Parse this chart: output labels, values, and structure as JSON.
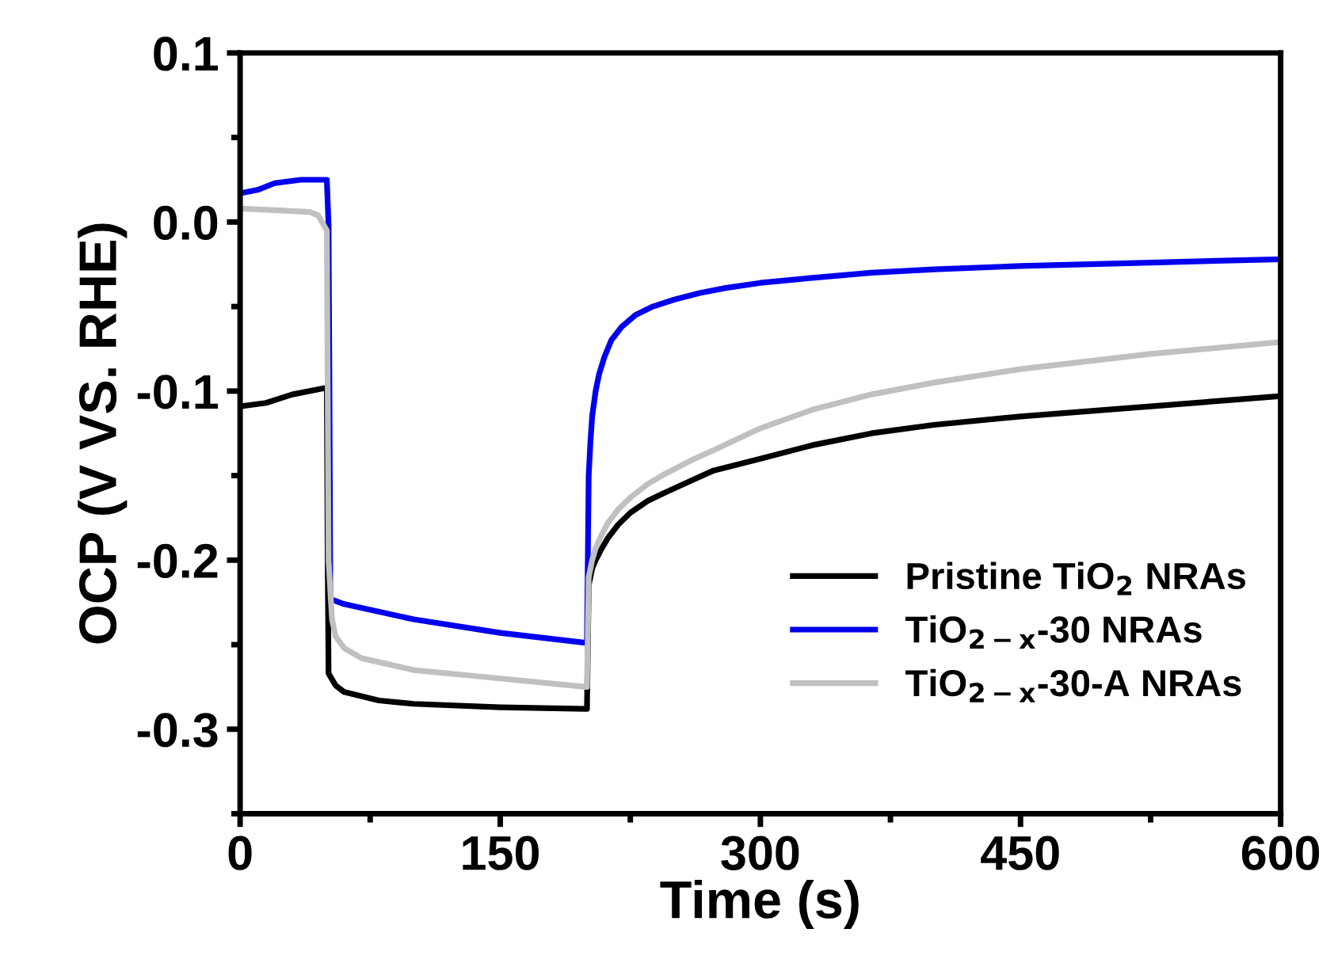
{
  "chart_data": {
    "type": "line",
    "xlabel": "Time (s)",
    "ylabel": "OCP (V VS. RHE)",
    "xlim": [
      0,
      600
    ],
    "xticks": [
      0,
      150,
      300,
      450,
      600
    ],
    "ylim": [
      -0.35,
      0.1
    ],
    "yticks": [
      {
        "value": -0.3,
        "label": "-0.3"
      },
      {
        "value": -0.2,
        "label": "-0.2"
      },
      {
        "value": -0.1,
        "label": "-0.1"
      },
      {
        "value": 0,
        "label": "0.0"
      },
      {
        "value": 0.1,
        "label": "0.1"
      }
    ],
    "grid": false,
    "legend": "bottom right",
    "line_style": "solid",
    "marker": "none",
    "series": [
      {
        "name": "Pristine TiO$_{2}$ NRAs",
        "color": "#000000",
        "x": [
          0,
          15,
          30,
          50,
          50.5,
          51,
          55,
          60,
          80,
          100,
          150,
          199.5,
          200,
          201,
          203,
          205,
          208,
          212,
          218,
          225,
          235,
          245,
          260,
          273,
          300,
          330,
          364,
          400,
          450,
          525,
          600
        ],
        "values": [
          -0.109,
          -0.107,
          -0.102,
          -0.098,
          -0.2,
          -0.267,
          -0.274,
          -0.278,
          -0.283,
          -0.285,
          -0.287,
          -0.288,
          -0.288,
          -0.215,
          -0.205,
          -0.2,
          -0.194,
          -0.187,
          -0.179,
          -0.172,
          -0.165,
          -0.16,
          -0.153,
          -0.147,
          -0.14,
          -0.132,
          -0.125,
          -0.12,
          -0.115,
          -0.109,
          -0.103
        ]
      },
      {
        "name": "TiO$_{2−x}$-30 NRAs",
        "color": "#0000ee",
        "x": [
          0,
          10,
          20,
          35,
          50,
          51,
          51.5,
          52,
          60,
          100,
          150,
          200,
          200.5,
          201,
          202,
          203,
          205,
          207,
          210,
          214,
          220,
          228,
          238,
          250,
          265,
          280,
          300,
          330,
          364,
          400,
          450,
          525,
          600
        ],
        "values": [
          0.017,
          0.019,
          0.023,
          0.025,
          0.025,
          -0.002,
          -0.1,
          -0.223,
          -0.226,
          -0.235,
          -0.243,
          -0.249,
          -0.2,
          -0.15,
          -0.13,
          -0.115,
          -0.1,
          -0.09,
          -0.08,
          -0.07,
          -0.062,
          -0.055,
          -0.05,
          -0.046,
          -0.042,
          -0.039,
          -0.036,
          -0.033,
          -0.03,
          -0.028,
          -0.026,
          -0.024,
          -0.022
        ]
      },
      {
        "name": "TiO$_{2−x}$-30-A NRAs",
        "color": "#c0c0c0",
        "x": [
          0,
          20,
          40,
          45,
          50,
          50.5,
          51,
          53,
          55,
          60,
          70,
          100,
          150,
          199.5,
          200,
          201,
          203,
          205,
          208,
          212,
          218,
          225,
          235,
          245,
          260,
          273,
          300,
          330,
          364,
          400,
          450,
          525,
          600
        ],
        "values": [
          0.008,
          0.007,
          0.006,
          0.004,
          -0.005,
          -0.1,
          -0.2,
          -0.235,
          -0.245,
          -0.252,
          -0.258,
          -0.265,
          -0.27,
          -0.275,
          -0.275,
          -0.21,
          -0.2,
          -0.193,
          -0.186,
          -0.178,
          -0.17,
          -0.163,
          -0.155,
          -0.149,
          -0.141,
          -0.135,
          -0.122,
          -0.111,
          -0.102,
          -0.095,
          -0.087,
          -0.078,
          -0.071
        ]
      }
    ]
  }
}
